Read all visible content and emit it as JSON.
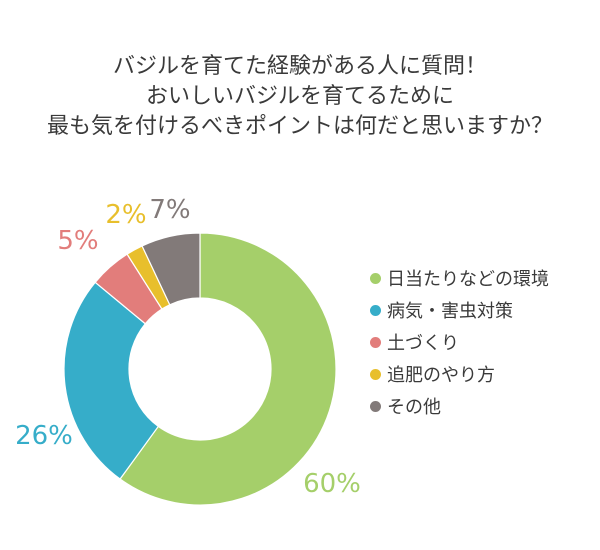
{
  "chart_data": {
    "type": "pie",
    "title_lines": [
      "バジルを育てた経験がある人に質問！",
      "おいしいバジルを育てるために",
      "最も気を付けるべきポイントは何だと思いますか？"
    ],
    "categories": [
      "日当たりなどの環境",
      "病気・害虫対策",
      "土づくり",
      "追肥のやり方",
      "その他"
    ],
    "values": [
      60,
      26,
      5,
      2,
      7
    ],
    "data_labels": [
      "60%",
      "26%",
      "5%",
      "2%",
      "7%"
    ],
    "colors": [
      "#a5cf6a",
      "#36adc9",
      "#e27d7b",
      "#e8bf2c",
      "#827a79"
    ],
    "donut": true,
    "legend_position": "right"
  }
}
